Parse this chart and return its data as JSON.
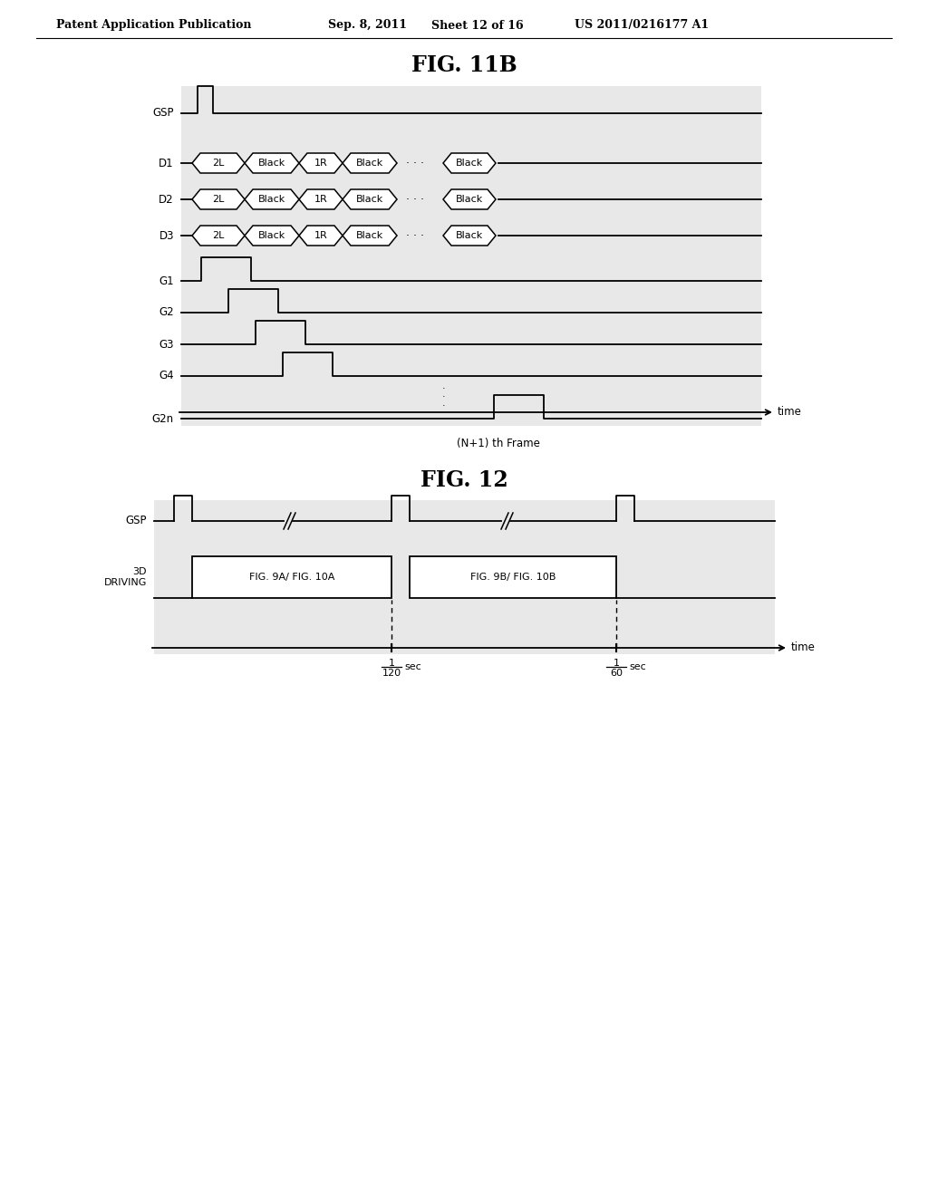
{
  "bg_color": "#ffffff",
  "diagram_bg": "#e8e8e8",
  "header_text": "Patent Application Publication",
  "header_date": "Sep. 8, 2011",
  "header_sheet": "Sheet 12 of 16",
  "header_patent": "US 2011/0216177 A1",
  "fig11b_title": "FIG. 11B",
  "fig12_title": "FIG. 12",
  "frame_label": "(N+1) th Frame",
  "time_label": "time",
  "gsp_label": "GSP",
  "d_labels": [
    "D1",
    "D2",
    "D3"
  ],
  "g_labels": [
    "G1",
    "G2",
    "G3",
    "G4",
    "G2n"
  ],
  "fig12_gsp_label": "GSP",
  "fig12_3d_label": "3D\nDRIVING",
  "fig12_seg1": "FIG. 9A/ FIG. 10A",
  "fig12_seg2": "FIG. 9B/ FIG. 10B"
}
